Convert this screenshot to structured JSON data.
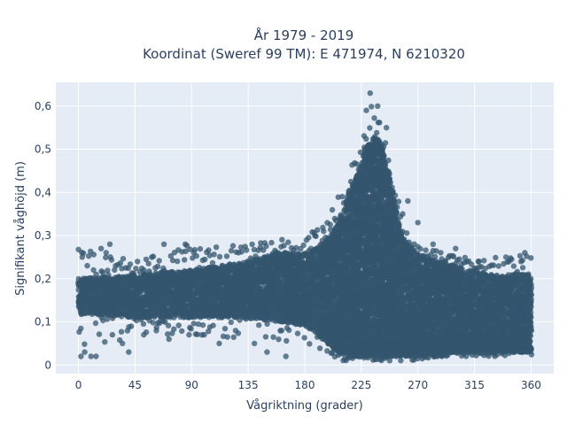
{
  "chart_data": {
    "type": "scatter",
    "title_line1": "År 1979 - 2019",
    "title_line2": "Koordinat (Sweref 99 TM): E 471974, N 6210320",
    "xlabel": "Vågriktning (grader)",
    "ylabel": "Signifikant våghöjd (m)",
    "xlim": [
      -18,
      378
    ],
    "ylim": [
      -0.02,
      0.655
    ],
    "x_ticks": [
      0,
      45,
      90,
      135,
      180,
      225,
      270,
      315,
      360
    ],
    "x_tick_labels": [
      "0",
      "45",
      "90",
      "135",
      "180",
      "225",
      "270",
      "315",
      "360"
    ],
    "y_ticks": [
      0,
      0.1,
      0.2,
      0.3,
      0.4,
      0.5,
      0.6
    ],
    "y_tick_labels": [
      "0",
      "0,1",
      "0,2",
      "0,3",
      "0,4",
      "0,5",
      "0,6"
    ],
    "grid": true,
    "marker_color": "#34566e",
    "plot_background": "#e5ecf6",
    "density_envelope": {
      "x": [
        0,
        45,
        90,
        135,
        160,
        180,
        195,
        205,
        215,
        222,
        228,
        235,
        240,
        245,
        250,
        255,
        262,
        270,
        285,
        300,
        315,
        330,
        345,
        360
      ],
      "core_low": [
        0.12,
        0.11,
        0.11,
        0.11,
        0.1,
        0.09,
        0.06,
        0.03,
        0.02,
        0.02,
        0.02,
        0.02,
        0.02,
        0.02,
        0.02,
        0.02,
        0.02,
        0.02,
        0.02,
        0.03,
        0.03,
        0.03,
        0.03,
        0.03
      ],
      "core_high": [
        0.2,
        0.21,
        0.22,
        0.24,
        0.26,
        0.26,
        0.28,
        0.32,
        0.4,
        0.45,
        0.5,
        0.53,
        0.52,
        0.47,
        0.4,
        0.33,
        0.28,
        0.26,
        0.24,
        0.23,
        0.22,
        0.21,
        0.21,
        0.21
      ],
      "scatter_low": [
        0.02,
        0.07,
        0.07,
        0.06,
        0.05,
        0.05,
        0.03,
        0.01,
        0.01,
        0.01,
        0.01,
        0.01,
        0.01,
        0.01,
        0.01,
        0.01,
        0.01,
        0.01,
        0.02,
        0.02,
        0.02,
        0.02,
        0.02,
        0.02
      ],
      "scatter_high": [
        0.28,
        0.24,
        0.28,
        0.28,
        0.29,
        0.3,
        0.32,
        0.38,
        0.45,
        0.52,
        0.58,
        0.63,
        0.58,
        0.52,
        0.45,
        0.38,
        0.32,
        0.28,
        0.27,
        0.25,
        0.25,
        0.25,
        0.25,
        0.26
      ]
    },
    "lower_band": {
      "x": [
        195,
        215,
        235,
        250,
        270,
        300,
        330,
        360
      ],
      "low": [
        0.06,
        0.02,
        0.02,
        0.02,
        0.02,
        0.03,
        0.03,
        0.03
      ],
      "high": [
        0.1,
        0.08,
        0.07,
        0.07,
        0.07,
        0.06,
        0.06,
        0.06
      ]
    },
    "outliers": [
      {
        "x": 2,
        "y": 0.02
      },
      {
        "x": 5,
        "y": 0.03
      },
      {
        "x": 10,
        "y": 0.02
      },
      {
        "x": 14,
        "y": 0.02
      },
      {
        "x": 3,
        "y": 0.25
      },
      {
        "x": 7,
        "y": 0.23
      },
      {
        "x": 12,
        "y": 0.22
      },
      {
        "x": 18,
        "y": 0.27
      },
      {
        "x": 22,
        "y": 0.26
      },
      {
        "x": 25,
        "y": 0.28
      },
      {
        "x": 27,
        "y": 0.07
      },
      {
        "x": 35,
        "y": 0.05
      },
      {
        "x": 40,
        "y": 0.03
      },
      {
        "x": 47,
        "y": 0.24
      },
      {
        "x": 52,
        "y": 0.07
      },
      {
        "x": 62,
        "y": 0.08
      },
      {
        "x": 68,
        "y": 0.28
      },
      {
        "x": 72,
        "y": 0.06
      },
      {
        "x": 85,
        "y": 0.28
      },
      {
        "x": 88,
        "y": 0.07
      },
      {
        "x": 100,
        "y": 0.07
      },
      {
        "x": 112,
        "y": 0.05
      },
      {
        "x": 125,
        "y": 0.08
      },
      {
        "x": 140,
        "y": 0.05
      },
      {
        "x": 150,
        "y": 0.03
      },
      {
        "x": 165,
        "y": 0.02
      },
      {
        "x": 188,
        "y": 0.3
      },
      {
        "x": 195,
        "y": 0.31
      },
      {
        "x": 232,
        "y": 0.63
      },
      {
        "x": 229,
        "y": 0.59
      },
      {
        "x": 238,
        "y": 0.6
      },
      {
        "x": 245,
        "y": 0.55
      },
      {
        "x": 262,
        "y": 0.38
      },
      {
        "x": 270,
        "y": 0.33
      },
      {
        "x": 282,
        "y": 0.28
      },
      {
        "x": 300,
        "y": 0.27
      },
      {
        "x": 318,
        "y": 0.24
      },
      {
        "x": 340,
        "y": 0.25
      },
      {
        "x": 352,
        "y": 0.24
      },
      {
        "x": 355,
        "y": 0.26
      }
    ]
  }
}
